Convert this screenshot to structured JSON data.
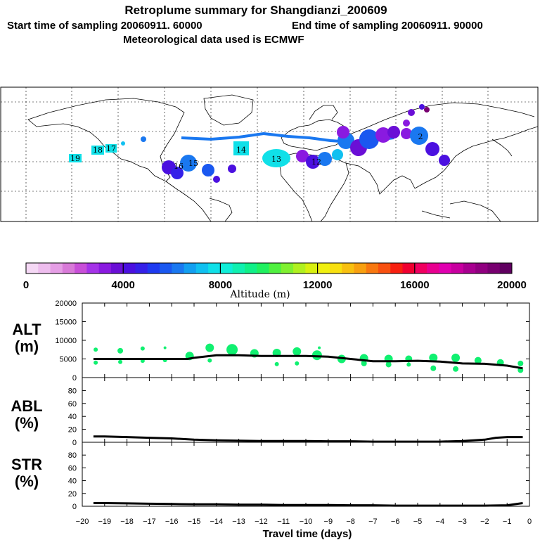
{
  "header": {
    "title": "Retroplume summary for Shangdianzi_200609",
    "start_label": "Start time of sampling 20060911. 60000",
    "end_label": "End time of sampling 20060911. 90000",
    "met_label": "Meteorological data used is ECMWF"
  },
  "colorbar": {
    "tick_labels": [
      "0",
      "4000",
      "8000",
      "12000",
      "16000",
      "20000"
    ],
    "label": "Altitude (m)",
    "colors": [
      "#f5d8f5",
      "#eebdee",
      "#e59ee5",
      "#d87ad8",
      "#c84fd8",
      "#a533e8",
      "#8a1ae0",
      "#6a0fd6",
      "#4b10e0",
      "#3520e8",
      "#1e3af0",
      "#1a58f0",
      "#1a78f0",
      "#129ff0",
      "#10c0f0",
      "#10e0e8",
      "#10eed8",
      "#10f0b0",
      "#10f088",
      "#20f060",
      "#50f040",
      "#80f030",
      "#b0f020",
      "#d8f010",
      "#f0f010",
      "#f8e010",
      "#f8c010",
      "#f8a010",
      "#f87810",
      "#f85010",
      "#f82010",
      "#f00030",
      "#f00060",
      "#e80090",
      "#e000b0",
      "#c800a0",
      "#a80090",
      "#900080",
      "#780070",
      "#600060"
    ]
  },
  "panels": {
    "alt": {
      "label_top": "ALT",
      "label_bottom": "(m)",
      "yticks": [
        "20000",
        "15000",
        "10000",
        "5000",
        "0"
      ]
    },
    "abl": {
      "label_top": "ABL",
      "label_bottom": "(%)",
      "yticks": [
        "80",
        "60",
        "40",
        "20",
        "0"
      ]
    },
    "str": {
      "label_top": "STR",
      "label_bottom": "(%)",
      "yticks": [
        "80",
        "60",
        "40",
        "20",
        "0"
      ]
    }
  },
  "x_axis": {
    "tick_labels": [
      "-20",
      "-19",
      "-18",
      "-17",
      "-16",
      "-15",
      "-14",
      "-13",
      "-12",
      "-11",
      "-10",
      "-9",
      "-8",
      "-7",
      "-6",
      "-5",
      "-4",
      "-3",
      "-2",
      "-1",
      "0"
    ],
    "label": "Travel time (days)"
  },
  "map": {
    "plume_labels": [
      {
        "text": "19",
        "color": "#10e0e8"
      },
      {
        "text": "18",
        "color": "#10e0e8"
      },
      {
        "text": "17",
        "color": "#10e0e8"
      },
      {
        "text": "16",
        "color": "#4b10e0"
      },
      {
        "text": "15",
        "color": "#1a78f0"
      },
      {
        "text": "14",
        "color": "#10e0e8"
      },
      {
        "text": "13",
        "color": "#10e0e8"
      },
      {
        "text": "12",
        "color": "#10e0e8"
      },
      {
        "text": "2",
        "color": "#1a78f0"
      }
    ]
  },
  "chart_data": [
    {
      "type": "line",
      "name": "ALT",
      "title": "Retroplume summary for Shangdianzi_200609",
      "xlabel": "Travel time (days)",
      "ylabel": "ALT (m)",
      "xlim": [
        -20,
        0
      ],
      "ylim": [
        0,
        20000
      ],
      "x": [
        -19.5,
        -19,
        -18,
        -17,
        -16,
        -15.3,
        -15,
        -14,
        -13,
        -12,
        -11,
        -10,
        -9,
        -8,
        -7,
        -6,
        -5,
        -4,
        -3,
        -2,
        -1,
        -0.3
      ],
      "values": [
        5000,
        5000,
        5000,
        5000,
        5000,
        5000,
        5300,
        6000,
        6000,
        5800,
        5800,
        5800,
        5600,
        5000,
        4400,
        4400,
        4500,
        4300,
        3800,
        3700,
        3200,
        2500
      ],
      "scatter": {
        "x": [
          -19.4,
          -19.4,
          -18.3,
          -18.3,
          -17.3,
          -17.3,
          -16.3,
          -16.3,
          -15.2,
          -14.3,
          -14.3,
          -13.3,
          -12.3,
          -11.3,
          -11.3,
          -10.4,
          -10.4,
          -9.5,
          -9.4,
          -8.4,
          -7.4,
          -7.4,
          -6.3,
          -6.3,
          -5.4,
          -5.4,
          -4.3,
          -4.3,
          -3.3,
          -3.3,
          -2.3,
          -1.3,
          -0.4,
          -0.4
        ],
        "y": [
          7500,
          4000,
          7200,
          4200,
          7800,
          4500,
          8000,
          4700,
          5800,
          8000,
          4600,
          7500,
          6500,
          6600,
          3600,
          7000,
          3800,
          6000,
          8000,
          5000,
          5200,
          3800,
          5000,
          3500,
          5000,
          3500,
          5300,
          2500,
          5300,
          2300,
          4600,
          4000,
          3800,
          2000
        ],
        "size": [
          3,
          3,
          4,
          3,
          3,
          3,
          2,
          3,
          6,
          6,
          3,
          8,
          6,
          6,
          3,
          6,
          3,
          7,
          2,
          6,
          6,
          4,
          6,
          4,
          5,
          3,
          6,
          4,
          6,
          4,
          5,
          5,
          4,
          4
        ]
      }
    },
    {
      "type": "line",
      "name": "ABL",
      "ylabel": "ABL (%)",
      "xlim": [
        -20,
        0
      ],
      "ylim": [
        0,
        100
      ],
      "x": [
        -19.5,
        -19,
        -18,
        -17,
        -16,
        -15,
        -14,
        -13,
        -12,
        -11,
        -10,
        -9,
        -8,
        -7,
        -6,
        -5,
        -4,
        -3,
        -2,
        -1.5,
        -1,
        -0.3
      ],
      "values": [
        9,
        9,
        8,
        7,
        6,
        4,
        3,
        2.5,
        2,
        2,
        2,
        1.5,
        1.5,
        1,
        1,
        1,
        1,
        2,
        4,
        7,
        8,
        8
      ]
    },
    {
      "type": "line",
      "name": "STR",
      "ylabel": "STR (%)",
      "xlim": [
        -20,
        0
      ],
      "ylim": [
        0,
        100
      ],
      "x": [
        -19.5,
        -19,
        -18,
        -17,
        -16,
        -15,
        -14,
        -13,
        -12,
        -11,
        -10,
        -9,
        -8,
        -7,
        -6,
        -5,
        -4,
        -3,
        -2,
        -1,
        -0.3
      ],
      "values": [
        5,
        5,
        4.5,
        4,
        3.5,
        3,
        3,
        2.5,
        2.5,
        2,
        2,
        2,
        1.5,
        1.5,
        1,
        1,
        1,
        1,
        1,
        1.5,
        5
      ]
    }
  ]
}
